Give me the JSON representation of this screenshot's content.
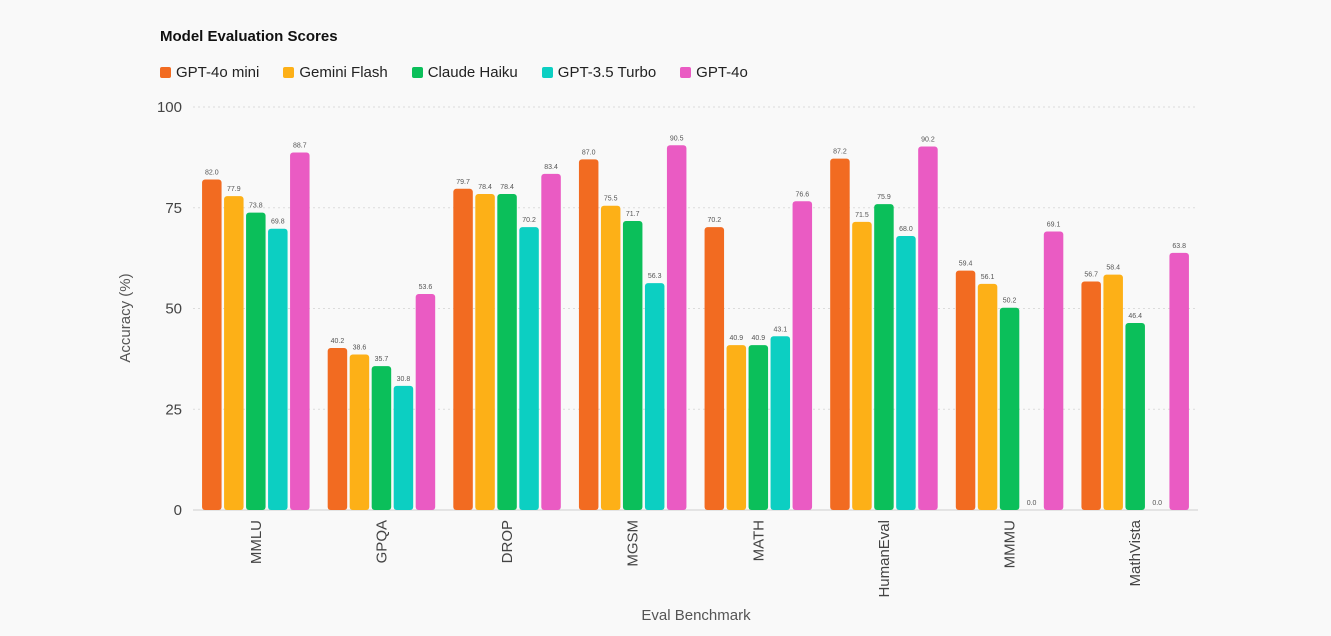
{
  "chart_data": {
    "type": "bar",
    "title": "Model Evaluation Scores",
    "xlabel": "Eval Benchmark",
    "ylabel": "Accuracy (%)",
    "ylim": [
      0,
      100
    ],
    "yticks": [
      0,
      25,
      50,
      75,
      100
    ],
    "grid": true,
    "legend_position": "top-left",
    "categories": [
      "MMLU",
      "GPQA",
      "DROP",
      "MGSM",
      "MATH",
      "HumanEval",
      "MMMU",
      "MathVista"
    ],
    "series": [
      {
        "name": "GPT-4o mini",
        "color": "#f26b21",
        "values": [
          82.0,
          40.2,
          79.7,
          87.0,
          70.2,
          87.2,
          59.4,
          56.7
        ]
      },
      {
        "name": "Gemini Flash",
        "color": "#fdb017",
        "values": [
          77.9,
          38.6,
          78.4,
          75.5,
          40.9,
          71.5,
          56.1,
          58.4
        ]
      },
      {
        "name": "Claude Haiku",
        "color": "#0bbf5a",
        "values": [
          73.8,
          35.7,
          78.4,
          71.7,
          40.9,
          75.9,
          50.2,
          46.4
        ]
      },
      {
        "name": "GPT-3.5 Turbo",
        "color": "#0ccfc2",
        "values": [
          69.8,
          30.8,
          70.2,
          56.3,
          43.1,
          68.0,
          0.0,
          0.0
        ]
      },
      {
        "name": "GPT-4o",
        "color": "#ea5bc3",
        "values": [
          88.7,
          53.6,
          83.4,
          90.5,
          76.6,
          90.2,
          69.1,
          63.8
        ]
      }
    ]
  }
}
